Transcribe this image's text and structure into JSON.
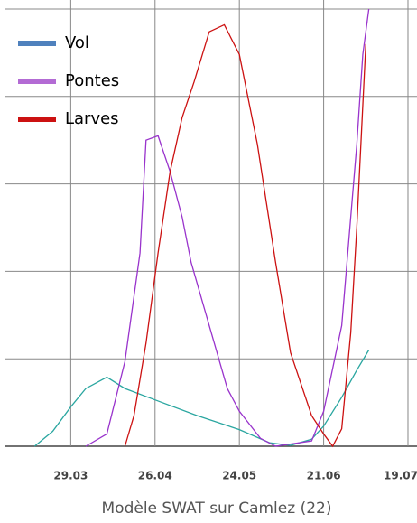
{
  "chart_data": {
    "type": "line",
    "caption": "Modèle SWAT sur Camlez (22)",
    "xlim": [
      "07.03",
      "22.07"
    ],
    "xticks": [
      "29.03",
      "26.04",
      "24.05",
      "21.06",
      "19.07"
    ],
    "ylim": [
      0,
      5
    ],
    "yticks": [
      0,
      1,
      2,
      3,
      4,
      5
    ],
    "grid": true,
    "legend": "top-left",
    "series": [
      {
        "name": "Vol",
        "color": "#2aa6a0",
        "legend_color": "#4f81bd",
        "x": [
          "17.03",
          "23.03",
          "29.03",
          "03.04",
          "10.04",
          "16.04",
          "26.04",
          "10.05",
          "24.05",
          "03.06",
          "10.06",
          "17.06",
          "21.06",
          "27.06",
          "02.07",
          "06.07"
        ],
        "values": [
          0,
          0.17,
          0.45,
          0.66,
          0.79,
          0.66,
          0.53,
          0.35,
          0.19,
          0.04,
          0.01,
          0.08,
          0.23,
          0.56,
          0.87,
          1.1
        ]
      },
      {
        "name": "Pontes",
        "color": "#9933cc",
        "legend_color": "#b36bd4",
        "x": [
          "03.04",
          "10.04",
          "16.04",
          "21.04",
          "23.04",
          "27.04",
          "01.05",
          "05.05",
          "08.05",
          "14.05",
          "20.05",
          "24.05",
          "31.05",
          "05.06",
          "17.06",
          "21.06",
          "27.06",
          "02.07",
          "04.07",
          "06.07"
        ],
        "values": [
          0,
          0.14,
          0.97,
          2.21,
          3.5,
          3.55,
          3.14,
          2.62,
          2.1,
          1.38,
          0.66,
          0.4,
          0.09,
          0,
          0.06,
          0.4,
          1.38,
          3.45,
          4.48,
          5.0
        ]
      },
      {
        "name": "Larves",
        "color": "#cc1111",
        "legend_color": "#cc1111",
        "x": [
          "16.04",
          "19.04",
          "23.04",
          "27.04",
          "01.05",
          "05.05",
          "09.05",
          "14.05",
          "19.05",
          "24.05",
          "30.05",
          "05.06",
          "10.06",
          "17.06",
          "21.06",
          "24.06",
          "27.06",
          "30.06",
          "02.07",
          "05.07"
        ],
        "values": [
          0,
          0.35,
          1.18,
          2.21,
          3.14,
          3.76,
          4.17,
          4.74,
          4.82,
          4.48,
          3.45,
          2.11,
          1.07,
          0.35,
          0.14,
          0,
          0.2,
          1.3,
          2.5,
          4.6
        ]
      }
    ]
  }
}
